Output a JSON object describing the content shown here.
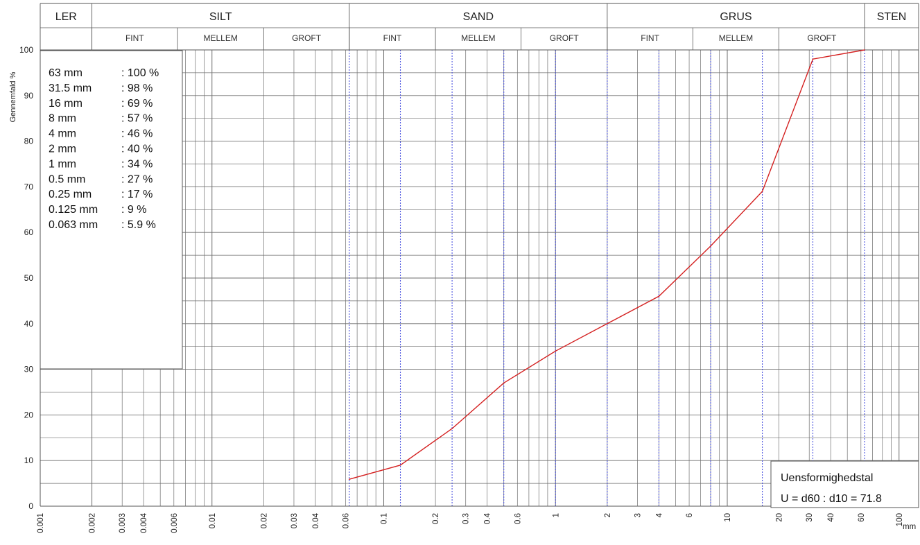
{
  "chart_data": {
    "type": "line",
    "xscale": "log",
    "xlim": [
      0.001,
      130
    ],
    "ylim": [
      0,
      100
    ],
    "ylabel": "Gennemfald %",
    "xunit": "mm",
    "soil_classes": [
      {
        "name": "LER",
        "range": [
          0.001,
          0.002
        ],
        "subclasses": []
      },
      {
        "name": "SILT",
        "range": [
          0.002,
          0.063
        ],
        "subclasses": [
          {
            "name": "FINT",
            "range": [
              0.002,
              0.0063
            ]
          },
          {
            "name": "MELLEM",
            "range": [
              0.0063,
              0.02
            ]
          },
          {
            "name": "GROFT",
            "range": [
              0.02,
              0.063
            ]
          }
        ]
      },
      {
        "name": "SAND",
        "range": [
          0.063,
          2
        ],
        "subclasses": [
          {
            "name": "FINT",
            "range": [
              0.063,
              0.2
            ]
          },
          {
            "name": "MELLEM",
            "range": [
              0.2,
              0.63
            ]
          },
          {
            "name": "GROFT",
            "range": [
              0.63,
              2
            ]
          }
        ]
      },
      {
        "name": "GRUS",
        "range": [
          2,
          63
        ],
        "subclasses": [
          {
            "name": "FINT",
            "range": [
              2,
              6.3
            ]
          },
          {
            "name": "MELLEM",
            "range": [
              6.3,
              20
            ]
          },
          {
            "name": "GROFT",
            "range": [
              20,
              63
            ]
          }
        ]
      },
      {
        "name": "STEN",
        "range": [
          63,
          130
        ],
        "subclasses": []
      }
    ],
    "x_ticks": [
      {
        "v": 0.001,
        "label": "0.001"
      },
      {
        "v": 0.002,
        "label": "0.002"
      },
      {
        "v": 0.003,
        "label": "0.003"
      },
      {
        "v": 0.004,
        "label": "0.004"
      },
      {
        "v": 0.006,
        "label": "0.006"
      },
      {
        "v": 0.01,
        "label": "0.01"
      },
      {
        "v": 0.02,
        "label": "0.02"
      },
      {
        "v": 0.03,
        "label": "0.03"
      },
      {
        "v": 0.04,
        "label": "0.04"
      },
      {
        "v": 0.06,
        "label": "0.06"
      },
      {
        "v": 0.1,
        "label": "0.1"
      },
      {
        "v": 0.2,
        "label": "0.2"
      },
      {
        "v": 0.3,
        "label": "0.3"
      },
      {
        "v": 0.4,
        "label": "0.4"
      },
      {
        "v": 0.6,
        "label": "0.6"
      },
      {
        "v": 1,
        "label": "1"
      },
      {
        "v": 2,
        "label": "2"
      },
      {
        "v": 3,
        "label": "3"
      },
      {
        "v": 4,
        "label": "4"
      },
      {
        "v": 6,
        "label": "6"
      },
      {
        "v": 10,
        "label": "10"
      },
      {
        "v": 20,
        "label": "20"
      },
      {
        "v": 30,
        "label": "30"
      },
      {
        "v": 40,
        "label": "40"
      },
      {
        "v": 60,
        "label": "60"
      },
      {
        "v": 100,
        "label": "100"
      }
    ],
    "y_ticks": [
      0,
      10,
      20,
      30,
      40,
      50,
      60,
      70,
      80,
      90,
      100
    ],
    "sieve_lines": [
      0.063,
      0.125,
      0.25,
      0.5,
      1,
      2,
      4,
      8,
      16,
      31.5,
      63
    ],
    "series": [
      {
        "color": "#d42020",
        "points": [
          {
            "x": 0.063,
            "y": 5.9
          },
          {
            "x": 0.125,
            "y": 9
          },
          {
            "x": 0.25,
            "y": 17
          },
          {
            "x": 0.5,
            "y": 27
          },
          {
            "x": 1,
            "y": 34
          },
          {
            "x": 2,
            "y": 40
          },
          {
            "x": 4,
            "y": 46
          },
          {
            "x": 8,
            "y": 57
          },
          {
            "x": 16,
            "y": 69
          },
          {
            "x": 31.5,
            "y": 98
          },
          {
            "x": 63,
            "y": 100
          }
        ]
      }
    ],
    "table": [
      {
        "size": "63 mm",
        "pct": ": 100 %"
      },
      {
        "size": "31.5 mm",
        "pct": ": 98 %"
      },
      {
        "size": "16 mm",
        "pct": ": 69 %"
      },
      {
        "size": "8 mm",
        "pct": ": 57 %"
      },
      {
        "size": "4 mm",
        "pct": ": 46 %"
      },
      {
        "size": "2 mm",
        "pct": ": 40 %"
      },
      {
        "size": "1 mm",
        "pct": ": 34 %"
      },
      {
        "size": "0.5 mm",
        "pct": ": 27 %"
      },
      {
        "size": "0.25 mm",
        "pct": ": 17 %"
      },
      {
        "size": "0.125 mm",
        "pct": ": 9 %"
      },
      {
        "size": "0.063 mm",
        "pct": ": 5.9 %"
      }
    ],
    "uniformity": {
      "title": "Uensformighedstal",
      "formula": "U = d60 : d10 = 71.8"
    }
  },
  "colors": {
    "grid": "#6e6e6e",
    "sieve": "#4a52e0",
    "curve": "#d42020",
    "border": "#555555"
  }
}
